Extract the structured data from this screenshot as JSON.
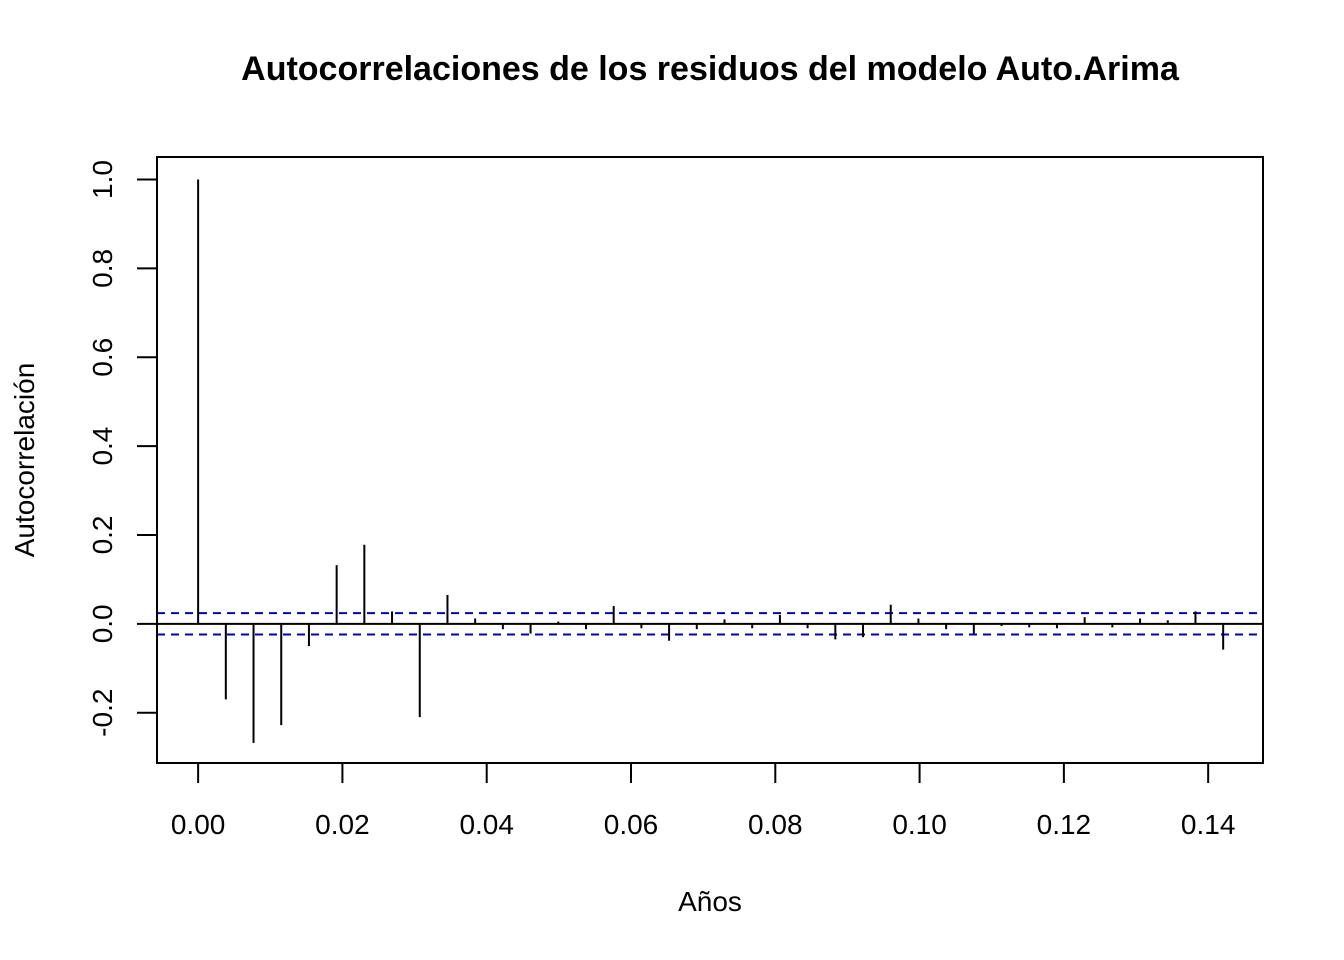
{
  "chart_data": {
    "type": "bar",
    "title": "Autocorrelaciones de los residuos del modelo Auto.Arima",
    "xlabel": "Años",
    "ylabel": "Autocorrelación",
    "xlim": [
      -0.0057,
      0.1476
    ],
    "ylim": [
      -0.3132,
      1.0506
    ],
    "x_ticks": [
      0.0,
      0.02,
      0.04,
      0.06,
      0.08,
      0.1,
      0.12,
      0.14
    ],
    "x_tick_labels": [
      "0.00",
      "0.02",
      "0.04",
      "0.06",
      "0.08",
      "0.10",
      "0.12",
      "0.14"
    ],
    "y_ticks": [
      -0.2,
      0.0,
      0.2,
      0.4,
      0.6,
      0.8,
      1.0
    ],
    "y_tick_labels": [
      "-0.2",
      "0.0",
      "0.2",
      "0.4",
      "0.6",
      "0.8",
      "1.0"
    ],
    "confidence_bounds": [
      0.024,
      -0.024
    ],
    "grid": false,
    "colors": {
      "lags": "#000000",
      "bounds": "#0000cc",
      "zero_line": "#000000"
    },
    "series": [
      {
        "x": [
          0.0,
          0.00384,
          0.00768,
          0.01152,
          0.01536,
          0.0192,
          0.02304,
          0.02688,
          0.03072,
          0.03456,
          0.0384,
          0.04224,
          0.04608,
          0.04992,
          0.05376,
          0.0576,
          0.06144,
          0.06528,
          0.06912,
          0.07296,
          0.0768,
          0.08064,
          0.08448,
          0.08832,
          0.09216,
          0.096,
          0.09984,
          0.10368,
          0.10752,
          0.11136,
          0.1152,
          0.11904,
          0.12288,
          0.12672,
          0.13056,
          0.1344,
          0.13824,
          0.14208
        ],
        "values": [
          1.0,
          -0.17,
          -0.268,
          -0.228,
          -0.05,
          0.132,
          0.178,
          0.028,
          -0.21,
          0.065,
          0.012,
          -0.012,
          -0.022,
          0.005,
          -0.012,
          0.04,
          -0.01,
          -0.038,
          -0.012,
          0.01,
          -0.01,
          0.02,
          -0.01,
          -0.035,
          -0.03,
          0.043,
          0.012,
          -0.012,
          -0.022,
          -0.005,
          -0.008,
          -0.01,
          0.015,
          -0.008,
          0.012,
          0.008,
          0.028,
          -0.058
        ]
      }
    ]
  }
}
